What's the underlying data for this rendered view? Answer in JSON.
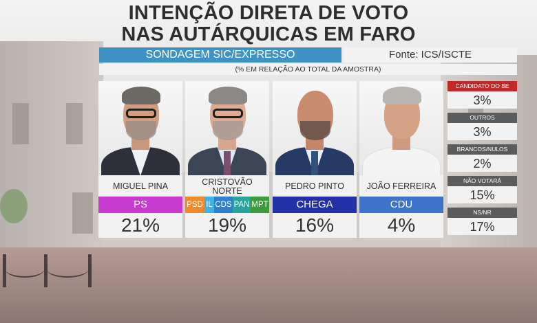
{
  "title_line1": "INTENÇÃO DIRETA DE VOTO",
  "title_line2": "NAS AUTÁRQUICAS EM FARO",
  "header_left": "SONDAGEM SIC/EXPRESSO",
  "header_right": "Fonte: ICS/ISCTE",
  "header_note": "(% EM RELAÇÃO AO TOTAL DA AMOSTRA)",
  "colors": {
    "ps": "#c83bd0",
    "psd": "#f08a2e",
    "il": "#3fb1e4",
    "cds": "#2f7fce",
    "pan": "#2aa39b",
    "mpt": "#3c9c3c",
    "chega": "#2430a8",
    "cdu": "#3d73c8",
    "be_label": "#c22a2a",
    "header_blue": "#3f93c4"
  },
  "chart_data": {
    "type": "table",
    "candidates": [
      {
        "name": "MIGUEL PINA",
        "parties": [
          "PS"
        ],
        "value": 21,
        "label": "21%"
      },
      {
        "name": "CRISTOVÃO NORTE",
        "name_line1": "CRISTOVÃO",
        "name_line2": "NORTE",
        "parties": [
          "PSD",
          "IL",
          "CDS",
          "PAN",
          "MPT"
        ],
        "value": 19,
        "label": "19%"
      },
      {
        "name": "PEDRO PINTO",
        "parties": [
          "CHEGA"
        ],
        "value": 16,
        "label": "16%"
      },
      {
        "name": "JOÃO FERREIRA",
        "parties": [
          "CDU"
        ],
        "value": 4,
        "label": "4%"
      }
    ],
    "other": [
      {
        "label": "CANDIDATO DO BE",
        "value": 3,
        "display": "3%"
      },
      {
        "label": "OUTROS",
        "value": 3,
        "display": "3%"
      },
      {
        "label": "BRANCOS/NULOS",
        "value": 2,
        "display": "2%"
      },
      {
        "label": "NÃO VOTARÁ",
        "value": 15,
        "display": "15%"
      },
      {
        "label": "NS/NR",
        "value": 17,
        "display": "17%"
      }
    ]
  }
}
